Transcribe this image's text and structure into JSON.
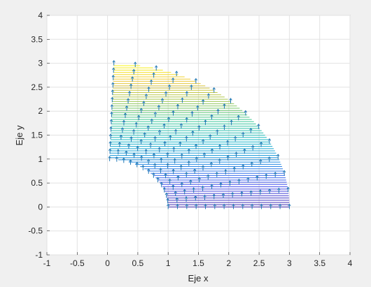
{
  "chart_data": {
    "type": "line",
    "title": "",
    "xlabel": "Eje x",
    "ylabel": "Eje y",
    "xlim": [
      -1,
      4
    ],
    "ylim": [
      -1,
      4
    ],
    "xticks": [
      "-1",
      "-0.5",
      "0",
      "0.5",
      "1",
      "1.5",
      "2",
      "2.5",
      "3",
      "3.5",
      "4"
    ],
    "yticks": [
      "-1",
      "-0.5",
      "0",
      "0.5",
      "1",
      "1.5",
      "2",
      "2.5",
      "3",
      "3.5",
      "4"
    ],
    "grid": true,
    "legend": "none",
    "description_of_series": "Family of horizontal colored lines (colormap parula by y) filling a curved region; arrow markers (quiver) along radial columns",
    "curved_region": {
      "inner_radius": 1.0,
      "outer_radius": 3.0,
      "angle_start_deg": 0,
      "angle_end_deg": 88
    },
    "colors": {
      "low": "#3e26a8",
      "mid": "#21b7b8",
      "high": "#f9fb0e",
      "arrows": "#1f77b4"
    }
  }
}
